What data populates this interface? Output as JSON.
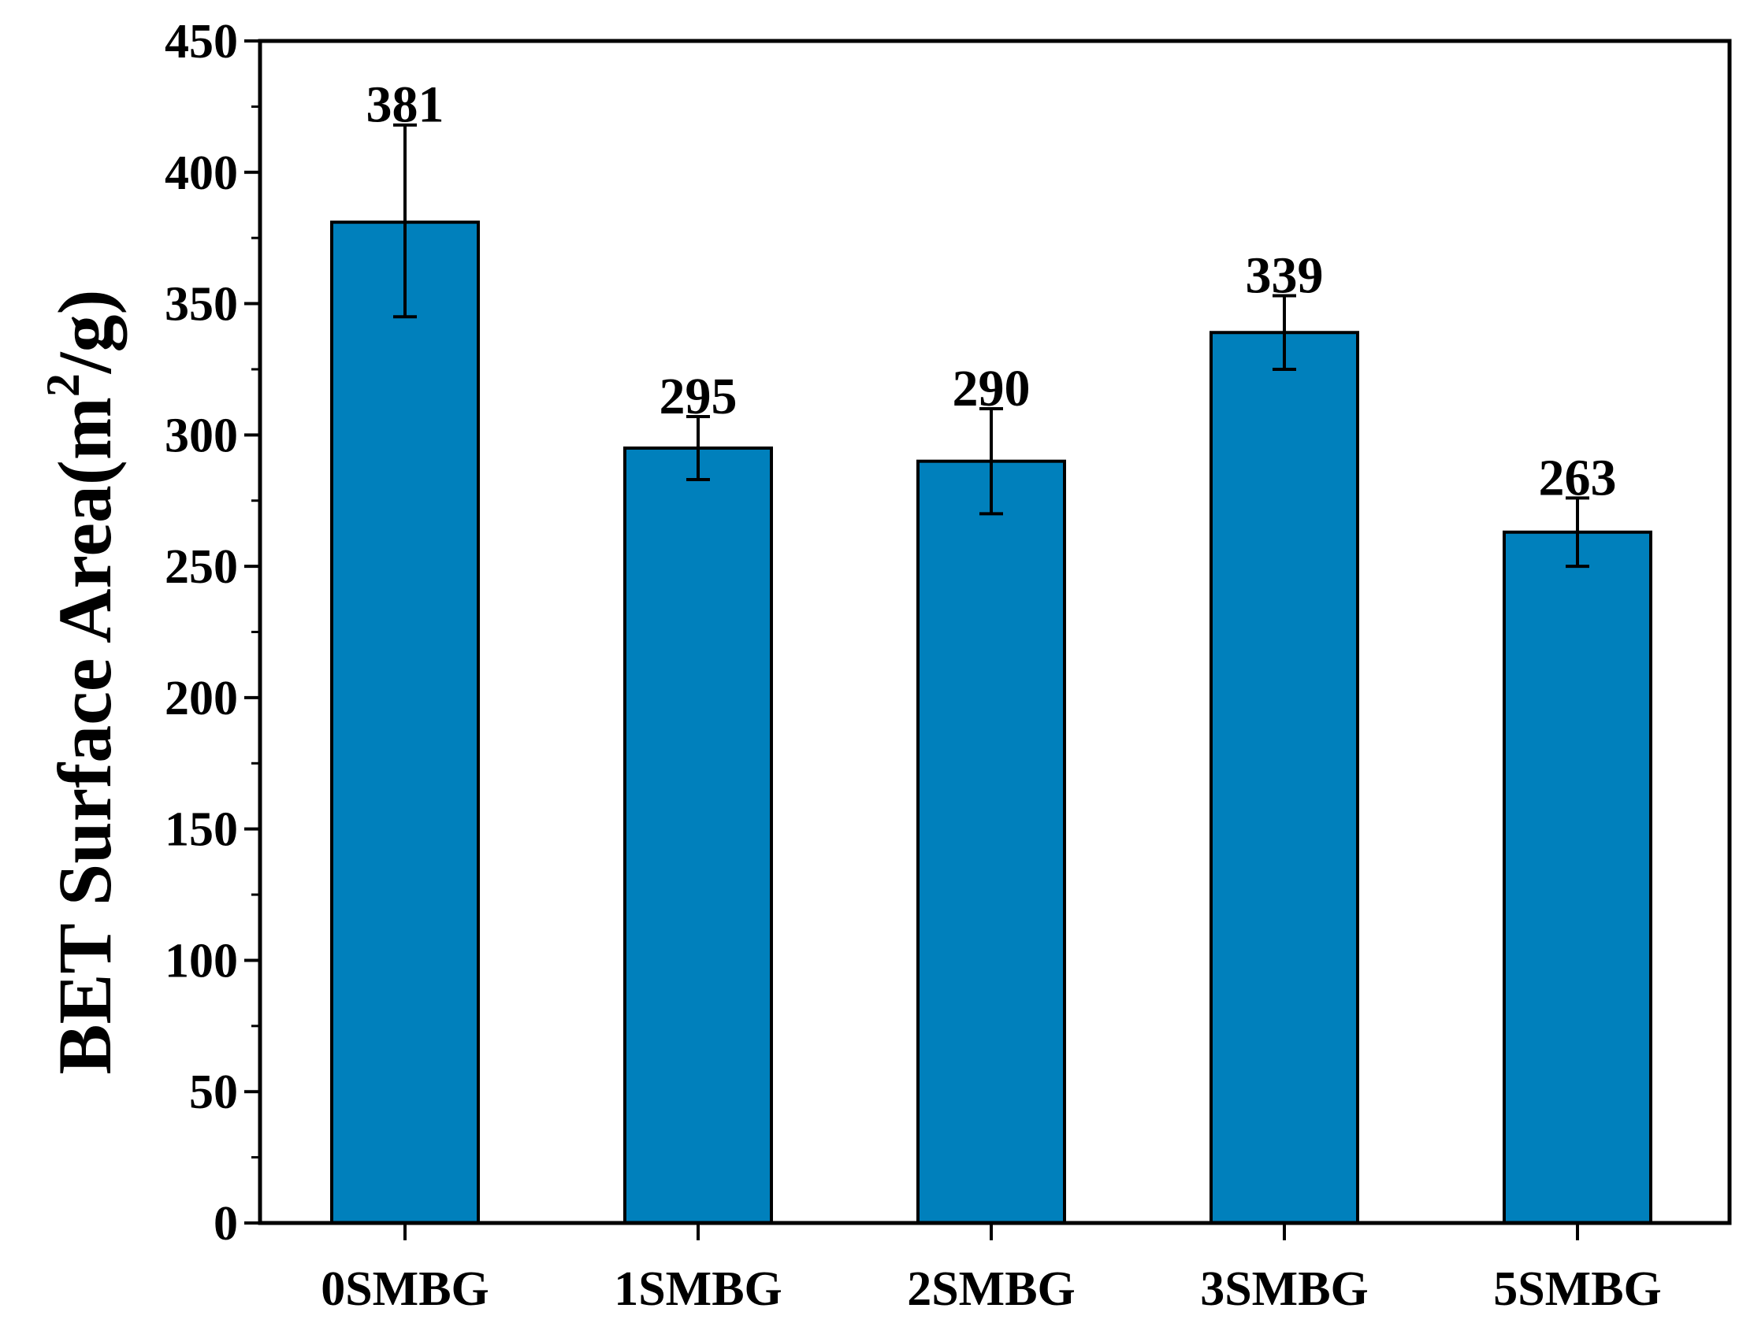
{
  "chart_data": {
    "type": "bar",
    "title": "",
    "xlabel": "",
    "ylabel": "BET Surface Area(m",
    "ylabel_sup": "2",
    "ylabel_tail": "/g)",
    "categories": [
      "0SMBG",
      "1SMBG",
      "2SMBG",
      "3SMBG",
      "5SMBG"
    ],
    "values": [
      381,
      295,
      290,
      339,
      263
    ],
    "error_upper": [
      418,
      307,
      310,
      353,
      276
    ],
    "error_lower": [
      345,
      283,
      270,
      325,
      250
    ],
    "data_labels": [
      "381",
      "295",
      "290",
      "339",
      "263"
    ],
    "ylim": [
      0,
      450
    ],
    "y_ticks": [
      0,
      50,
      100,
      150,
      200,
      250,
      300,
      350,
      400,
      450
    ],
    "y_tick_labels": [
      "0",
      "50",
      "100",
      "150",
      "200",
      "250",
      "300",
      "350",
      "400",
      "450"
    ],
    "grid": false,
    "legend": "none",
    "bar_color": "#0080BC",
    "bar_edge_color": "#000000"
  }
}
